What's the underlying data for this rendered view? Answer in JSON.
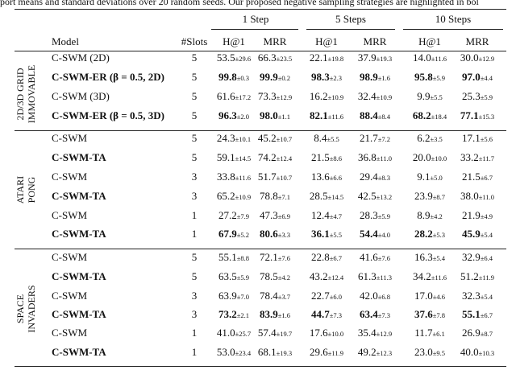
{
  "caption": "port means and standard deviations over 20 random seeds. Our proposed negative sampling strategies are highlighted in bol",
  "header": {
    "model": "Model",
    "slots": "#Slots",
    "step_groups": [
      "1 Step",
      "5 Steps",
      "10 Steps"
    ],
    "metrics": [
      "H@1",
      "MRR",
      "H@1",
      "MRR",
      "H@1",
      "MRR"
    ]
  },
  "groups": [
    {
      "label_lines": [
        "2D/3D GRID",
        "IMMOVABLE"
      ],
      "rows": [
        {
          "model": "C-SWM (2D)",
          "bold": false,
          "slots": "5",
          "cells": [
            {
              "m": "53.5",
              "s": "±29.6"
            },
            {
              "m": "66.3",
              "s": "±23.5"
            },
            {
              "m": "22.1",
              "s": "±19.8"
            },
            {
              "m": "37.9",
              "s": "±19.3"
            },
            {
              "m": "14.0",
              "s": "±11.6"
            },
            {
              "m": "30.0",
              "s": "±12.9"
            }
          ]
        },
        {
          "model": "C-SWM-ER (β = 0.5, 2D)",
          "bold": true,
          "slots": "5",
          "cells": [
            {
              "m": "99.8",
              "s": "±0.3",
              "b": true
            },
            {
              "m": "99.9",
              "s": "±0.2",
              "b": true
            },
            {
              "m": "98.3",
              "s": "±2.3",
              "b": true
            },
            {
              "m": "98.9",
              "s": "±1.6",
              "b": true
            },
            {
              "m": "95.8",
              "s": "±5.9",
              "b": true
            },
            {
              "m": "97.0",
              "s": "±4.4",
              "b": true
            }
          ]
        },
        {
          "model": "C-SWM (3D)",
          "bold": false,
          "slots": "5",
          "cells": [
            {
              "m": "61.6",
              "s": "±17.2"
            },
            {
              "m": "73.3",
              "s": "±12.9"
            },
            {
              "m": "16.2",
              "s": "±10.9"
            },
            {
              "m": "32.4",
              "s": "±10.9"
            },
            {
              "m": "9.9",
              "s": "±5.5"
            },
            {
              "m": "25.3",
              "s": "±5.9"
            }
          ]
        },
        {
          "model": "C-SWM-ER (β = 0.5, 3D)",
          "bold": true,
          "slots": "5",
          "cells": [
            {
              "m": "96.3",
              "s": "±2.0",
              "b": true
            },
            {
              "m": "98.0",
              "s": "±1.1",
              "b": true
            },
            {
              "m": "82.1",
              "s": "±11.6",
              "b": true
            },
            {
              "m": "88.4",
              "s": "±8.4",
              "b": true
            },
            {
              "m": "68.2",
              "s": "±18.4",
              "b": true
            },
            {
              "m": "77.1",
              "s": "±15.3",
              "b": true
            }
          ]
        }
      ]
    },
    {
      "label_lines": [
        "ATARI",
        "PONG"
      ],
      "rows": [
        {
          "model": "C-SWM",
          "bold": false,
          "slots": "5",
          "cells": [
            {
              "m": "24.3",
              "s": "±10.1"
            },
            {
              "m": "45.2",
              "s": "±10.7"
            },
            {
              "m": "8.4",
              "s": "±5.5"
            },
            {
              "m": "21.7",
              "s": "±7.2"
            },
            {
              "m": "6.2",
              "s": "±3.5"
            },
            {
              "m": "17.1",
              "s": "±5.6"
            }
          ]
        },
        {
          "model": "C-SWM-TA",
          "bold": true,
          "slots": "5",
          "cells": [
            {
              "m": "59.1",
              "s": "±14.5"
            },
            {
              "m": "74.2",
              "s": "±12.4"
            },
            {
              "m": "21.5",
              "s": "±8.6"
            },
            {
              "m": "36.8",
              "s": "±11.0"
            },
            {
              "m": "20.0",
              "s": "±10.0"
            },
            {
              "m": "33.2",
              "s": "±11.7"
            }
          ]
        },
        {
          "model": "C-SWM",
          "bold": false,
          "slots": "3",
          "cells": [
            {
              "m": "33.8",
              "s": "±11.6"
            },
            {
              "m": "51.7",
              "s": "±10.7"
            },
            {
              "m": "13.6",
              "s": "±6.6"
            },
            {
              "m": "29.4",
              "s": "±8.3"
            },
            {
              "m": "9.1",
              "s": "±5.0"
            },
            {
              "m": "21.5",
              "s": "±6.7"
            }
          ]
        },
        {
          "model": "C-SWM-TA",
          "bold": true,
          "slots": "3",
          "cells": [
            {
              "m": "65.2",
              "s": "±10.9"
            },
            {
              "m": "78.8",
              "s": "±7.1"
            },
            {
              "m": "28.5",
              "s": "±14.5"
            },
            {
              "m": "42.5",
              "s": "±13.2"
            },
            {
              "m": "23.9",
              "s": "±8.7"
            },
            {
              "m": "38.0",
              "s": "±11.0"
            }
          ]
        },
        {
          "model": "C-SWM",
          "bold": false,
          "slots": "1",
          "cells": [
            {
              "m": "27.2",
              "s": "±7.9"
            },
            {
              "m": "47.3",
              "s": "±6.9"
            },
            {
              "m": "12.4",
              "s": "±4.7"
            },
            {
              "m": "28.3",
              "s": "±5.9"
            },
            {
              "m": "8.9",
              "s": "±4.2"
            },
            {
              "m": "21.9",
              "s": "±4.9"
            }
          ]
        },
        {
          "model": "C-SWM-TA",
          "bold": true,
          "slots": "1",
          "cells": [
            {
              "m": "67.9",
              "s": "±5.2",
              "b": true
            },
            {
              "m": "80.6",
              "s": "±3.3",
              "b": true
            },
            {
              "m": "36.1",
              "s": "±5.5",
              "b": true
            },
            {
              "m": "54.4",
              "s": "±4.0",
              "b": true
            },
            {
              "m": "28.2",
              "s": "±5.3",
              "b": true
            },
            {
              "m": "45.9",
              "s": "±5.4",
              "b": true
            }
          ]
        }
      ]
    },
    {
      "label_lines": [
        "SPACE",
        "INVADERS"
      ],
      "rows": [
        {
          "model": "C-SWM",
          "bold": false,
          "slots": "5",
          "cells": [
            {
              "m": "55.1",
              "s": "±8.8"
            },
            {
              "m": "72.1",
              "s": "±7.6"
            },
            {
              "m": "22.8",
              "s": "±6.7"
            },
            {
              "m": "41.6",
              "s": "±7.6"
            },
            {
              "m": "16.3",
              "s": "±5.4"
            },
            {
              "m": "32.9",
              "s": "±6.4"
            }
          ]
        },
        {
          "model": "C-SWM-TA",
          "bold": true,
          "slots": "5",
          "cells": [
            {
              "m": "63.5",
              "s": "±5.9"
            },
            {
              "m": "78.5",
              "s": "±4.2"
            },
            {
              "m": "43.2",
              "s": "±12.4"
            },
            {
              "m": "61.3",
              "s": "±11.3"
            },
            {
              "m": "34.2",
              "s": "±11.6"
            },
            {
              "m": "51.2",
              "s": "±11.9"
            }
          ]
        },
        {
          "model": "C-SWM",
          "bold": false,
          "slots": "3",
          "cells": [
            {
              "m": "63.9",
              "s": "±7.0"
            },
            {
              "m": "78.4",
              "s": "±3.7"
            },
            {
              "m": "22.7",
              "s": "±6.0"
            },
            {
              "m": "42.0",
              "s": "±6.8"
            },
            {
              "m": "17.0",
              "s": "±4.6"
            },
            {
              "m": "32.3",
              "s": "±5.4"
            }
          ]
        },
        {
          "model": "C-SWM-TA",
          "bold": true,
          "slots": "3",
          "cells": [
            {
              "m": "73.2",
              "s": "±2.1",
              "b": true
            },
            {
              "m": "83.9",
              "s": "±1.6",
              "b": true
            },
            {
              "m": "44.7",
              "s": "±7.3",
              "b": true
            },
            {
              "m": "63.4",
              "s": "±7.3",
              "b": true
            },
            {
              "m": "37.6",
              "s": "±7.8",
              "b": true
            },
            {
              "m": "55.1",
              "s": "±6.7",
              "b": true
            }
          ]
        },
        {
          "model": "C-SWM",
          "bold": false,
          "slots": "1",
          "cells": [
            {
              "m": "41.0",
              "s": "±25.7"
            },
            {
              "m": "57.4",
              "s": "±19.7"
            },
            {
              "m": "17.6",
              "s": "±10.0"
            },
            {
              "m": "35.4",
              "s": "±12.9"
            },
            {
              "m": "11.7",
              "s": "±6.1"
            },
            {
              "m": "26.9",
              "s": "±8.7"
            }
          ]
        },
        {
          "model": "C-SWM-TA",
          "bold": true,
          "slots": "1",
          "cells": [
            {
              "m": "53.0",
              "s": "±23.4"
            },
            {
              "m": "68.1",
              "s": "±19.3"
            },
            {
              "m": "29.6",
              "s": "±11.9"
            },
            {
              "m": "49.2",
              "s": "±12.3"
            },
            {
              "m": "23.0",
              "s": "±9.5"
            },
            {
              "m": "40.0",
              "s": "±10.3"
            }
          ]
        }
      ]
    }
  ]
}
